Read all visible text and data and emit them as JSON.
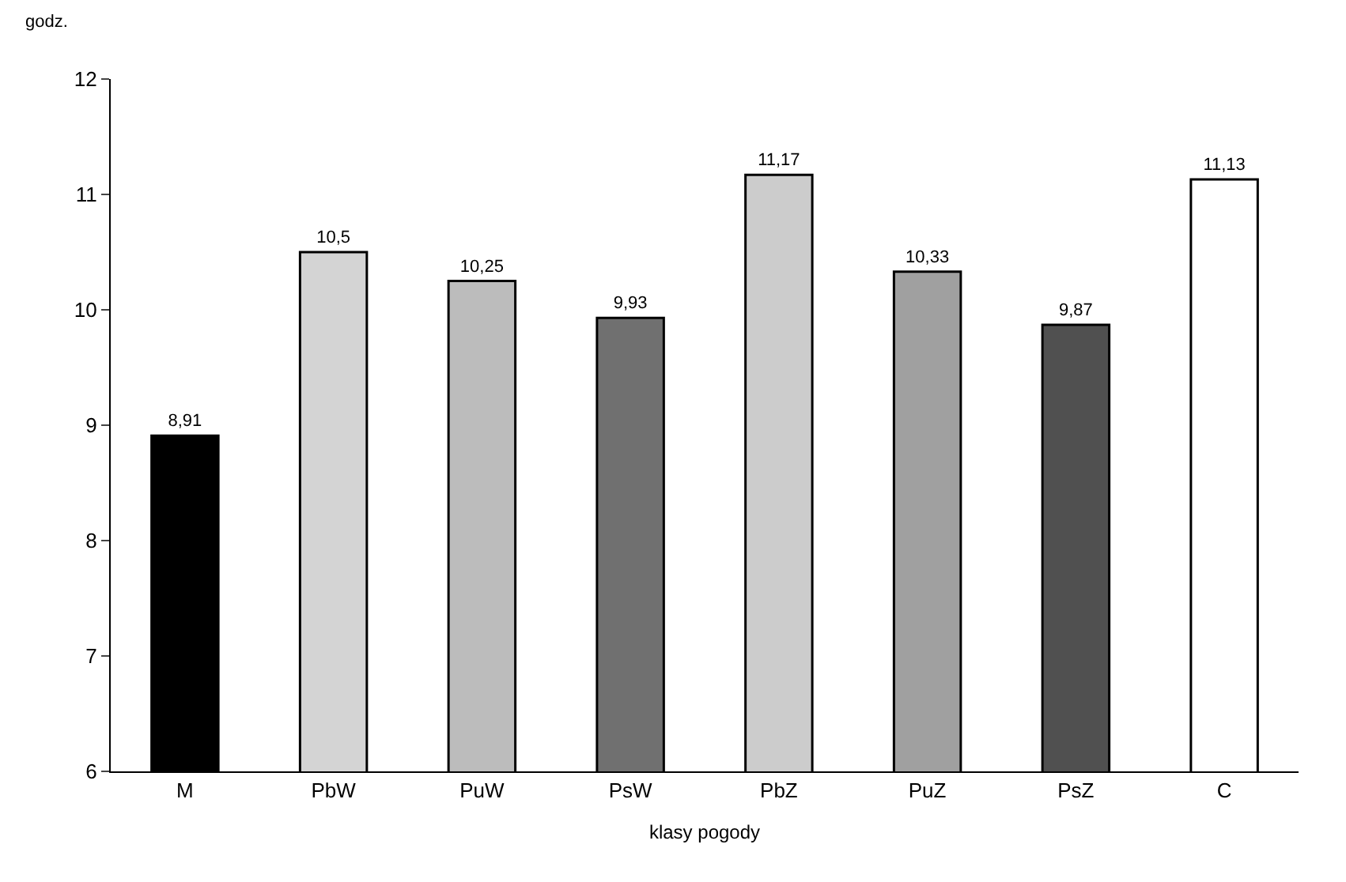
{
  "chart_data": {
    "type": "bar",
    "ylabel": "godz.",
    "xlabel": "klasy pogody",
    "categories": [
      "M",
      "PbW",
      "PuW",
      "PsW",
      "PbZ",
      "PuZ",
      "PsZ",
      "C"
    ],
    "values": [
      8.91,
      10.5,
      10.25,
      9.93,
      11.17,
      10.33,
      9.87,
      11.13
    ],
    "value_labels": [
      "8,91",
      "10,5",
      "10,25",
      "9,93",
      "11,17",
      "10,33",
      "9,87",
      "11,13"
    ],
    "colors": [
      "#000000",
      "#d4d4d4",
      "#bcbcbc",
      "#707070",
      "#cccccc",
      "#a0a0a0",
      "#505050",
      "#ffffff"
    ],
    "ylim": [
      6,
      12
    ],
    "yticks": [
      6,
      7,
      8,
      9,
      10,
      11,
      12
    ]
  }
}
